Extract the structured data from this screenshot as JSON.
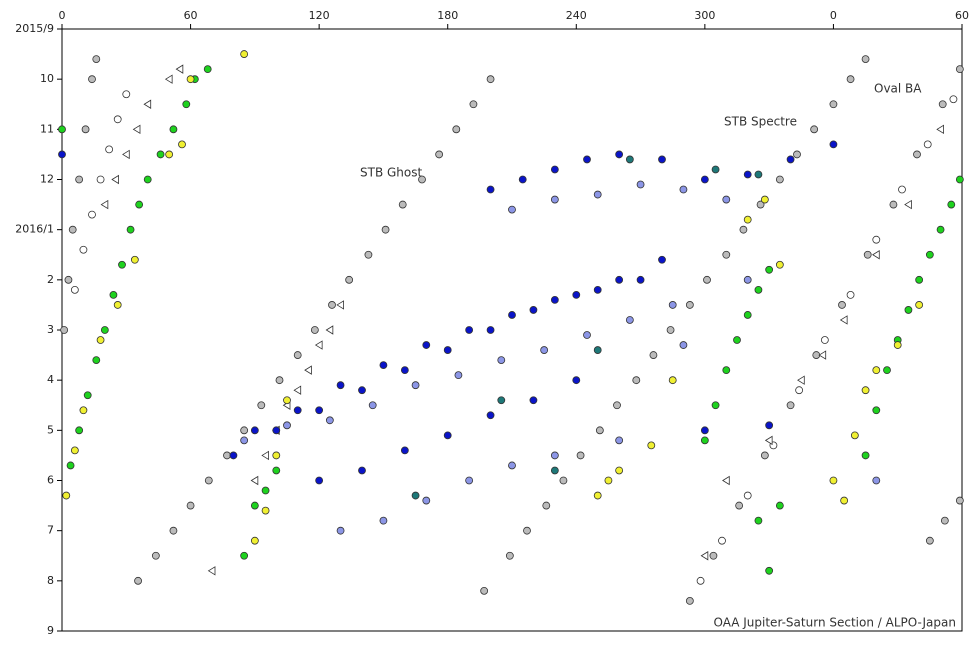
{
  "chart_data": {
    "type": "scatter",
    "annotations": [
      "STB Ghost",
      "STB Spectre",
      "Oval BA"
    ],
    "footer": "OAA Jupiter-Saturn Section / ALPO-Japan",
    "xlim": [
      0,
      420
    ],
    "xticks": [
      0,
      60,
      120,
      180,
      240,
      300,
      {
        "value": 360,
        "label": "0"
      },
      {
        "value": 420,
        "label": "60"
      }
    ],
    "ylim": [
      0,
      12
    ],
    "yticks": [
      {
        "value": 0,
        "label": "2015/9"
      },
      {
        "value": 1,
        "label": "10"
      },
      {
        "value": 2,
        "label": "11"
      },
      {
        "value": 3,
        "label": "12"
      },
      {
        "value": 4,
        "label": "2016/1"
      },
      {
        "value": 5,
        "label": "2"
      },
      {
        "value": 6,
        "label": "3"
      },
      {
        "value": 7,
        "label": "4"
      },
      {
        "value": 8,
        "label": "5"
      },
      {
        "value": 9,
        "label": "6"
      },
      {
        "value": 10,
        "label": "7"
      },
      {
        "value": 11,
        "label": "8"
      },
      {
        "value": 12,
        "label": "9"
      }
    ],
    "y_reversed": true,
    "series": [
      {
        "color": "#bbbbbb",
        "marker": "circle",
        "x": [
          35.5,
          43.8,
          52,
          60,
          68.5,
          77,
          85,
          93,
          101.5,
          110,
          118,
          126,
          134,
          143,
          151,
          159,
          168,
          176,
          184,
          192,
          200,
          197,
          209,
          217,
          226,
          234,
          242,
          251,
          259,
          268,
          276,
          284,
          293,
          301,
          310,
          318,
          326,
          335,
          343,
          351,
          360,
          368,
          375,
          1,
          3,
          5,
          8,
          11,
          14,
          16,
          293,
          304,
          316,
          328,
          340,
          352,
          364,
          376,
          388,
          399,
          411,
          419,
          405,
          412,
          419
        ],
        "values": [
          11,
          10.5,
          10,
          9.5,
          9,
          8.5,
          8,
          7.5,
          7,
          6.5,
          6,
          5.5,
          5,
          4.5,
          4,
          3.5,
          3,
          2.5,
          2,
          1.5,
          1,
          11.2,
          10.5,
          10,
          9.5,
          9,
          8.5,
          8,
          7.5,
          7,
          6.5,
          6,
          5.5,
          5,
          4.5,
          4,
          3.5,
          3,
          2.5,
          2,
          1.5,
          1,
          0.6,
          6,
          5,
          4,
          3,
          2,
          1,
          0.6,
          11.4,
          10.5,
          9.5,
          8.5,
          7.5,
          6.5,
          5.5,
          4.5,
          3.5,
          2.5,
          1.5,
          0.8,
          10.2,
          9.8,
          9.4
        ]
      },
      {
        "color": "#ffffff",
        "marker": "circle",
        "x": [
          6,
          10,
          14,
          18,
          22,
          26,
          30,
          298,
          308,
          320,
          332,
          344,
          356,
          368,
          380,
          392,
          404,
          416
        ],
        "values": [
          5.2,
          4.4,
          3.7,
          3.0,
          2.4,
          1.8,
          1.3,
          11.0,
          10.2,
          9.3,
          8.3,
          7.2,
          6.2,
          5.3,
          4.2,
          3.2,
          2.3,
          1.4
        ]
      },
      {
        "color": "#ffffff",
        "marker": "triangle",
        "x": [
          20,
          25,
          30,
          35,
          40,
          50,
          55,
          70,
          90,
          95,
          100,
          105,
          110,
          115,
          120,
          125,
          130,
          300,
          310,
          330,
          345,
          355,
          365,
          380,
          395,
          410
        ],
        "values": [
          3.5,
          3.0,
          2.5,
          2.0,
          1.5,
          1.0,
          0.8,
          10.8,
          9.0,
          8.5,
          8.0,
          7.5,
          7.2,
          6.8,
          6.3,
          6.0,
          5.5,
          10.5,
          9.0,
          8.2,
          7.0,
          6.5,
          5.8,
          4.5,
          3.5,
          2.0
        ]
      },
      {
        "color": "#0a14c8",
        "marker": "circle",
        "x": [
          80,
          100,
          120,
          140,
          160,
          180,
          200,
          220,
          240,
          260,
          280,
          90,
          110,
          130,
          150,
          170,
          190,
          210,
          230,
          250,
          270,
          200,
          215,
          230,
          245,
          260,
          280,
          300,
          320,
          340,
          360,
          120,
          140,
          160,
          180,
          200,
          220,
          240,
          300,
          330,
          0
        ],
        "values": [
          8.5,
          8.0,
          7.6,
          7.2,
          6.8,
          6.4,
          6.0,
          5.6,
          5.3,
          5.0,
          4.6,
          8.0,
          7.6,
          7.1,
          6.7,
          6.3,
          6.0,
          5.7,
          5.4,
          5.2,
          5.0,
          3.2,
          3.0,
          2.8,
          2.6,
          2.5,
          2.6,
          3.0,
          2.9,
          2.6,
          2.3,
          9.0,
          8.8,
          8.4,
          8.1,
          7.7,
          7.4,
          7.0,
          8.0,
          7.9,
          2.5
        ]
      },
      {
        "color": "#8c96e6",
        "marker": "circle",
        "x": [
          85,
          105,
          125,
          145,
          165,
          185,
          205,
          225,
          245,
          265,
          285,
          210,
          230,
          250,
          270,
          290,
          310,
          130,
          150,
          170,
          190,
          210,
          230,
          260,
          290,
          320,
          380
        ],
        "values": [
          8.2,
          7.9,
          7.8,
          7.5,
          7.1,
          6.9,
          6.6,
          6.4,
          6.1,
          5.8,
          5.5,
          3.6,
          3.4,
          3.3,
          3.1,
          3.2,
          3.4,
          10.0,
          9.8,
          9.4,
          9.0,
          8.7,
          8.5,
          8.2,
          6.3,
          5.0,
          9.0
        ]
      },
      {
        "color": "#1e7878",
        "marker": "circle",
        "x": [
          165,
          205,
          230,
          250,
          265,
          305,
          325
        ],
        "values": [
          9.3,
          7.4,
          8.8,
          6.4,
          2.6,
          2.8,
          2.9
        ]
      },
      {
        "color": "#1ed21e",
        "marker": "circle",
        "x": [
          4,
          8,
          12,
          16,
          20,
          24,
          28,
          32,
          36,
          40,
          46,
          52,
          58,
          62,
          68,
          0,
          85,
          90,
          95,
          100,
          300,
          305,
          310,
          315,
          320,
          325,
          330,
          325,
          330,
          335,
          375,
          380,
          385,
          390,
          395,
          400,
          405,
          410,
          415,
          419
        ],
        "values": [
          8.7,
          8.0,
          7.3,
          6.6,
          6.0,
          5.3,
          4.7,
          4.0,
          3.5,
          3.0,
          2.5,
          2.0,
          1.5,
          1.0,
          0.8,
          2.0,
          10.5,
          9.5,
          9.2,
          8.8,
          8.2,
          7.5,
          6.8,
          6.2,
          5.7,
          5.2,
          4.8,
          9.8,
          10.8,
          9.5,
          8.5,
          7.6,
          6.8,
          6.2,
          5.6,
          5.0,
          4.5,
          4.0,
          3.5,
          3.0
        ]
      },
      {
        "color": "#f0f032",
        "marker": "circle",
        "x": [
          2,
          6,
          10,
          18,
          26,
          34,
          50,
          56,
          60,
          90,
          95,
          100,
          105,
          250,
          255,
          260,
          275,
          285,
          320,
          328,
          335,
          360,
          365,
          370,
          375,
          380,
          390,
          400,
          85
        ],
        "values": [
          9.3,
          8.4,
          7.6,
          6.2,
          5.5,
          4.6,
          2.5,
          2.3,
          1.0,
          10.2,
          9.6,
          8.5,
          7.4,
          9.3,
          9.0,
          8.8,
          8.3,
          7.0,
          3.8,
          3.4,
          4.7,
          9.0,
          9.4,
          8.1,
          7.2,
          6.8,
          6.3,
          5.5,
          0.5
        ]
      }
    ]
  }
}
